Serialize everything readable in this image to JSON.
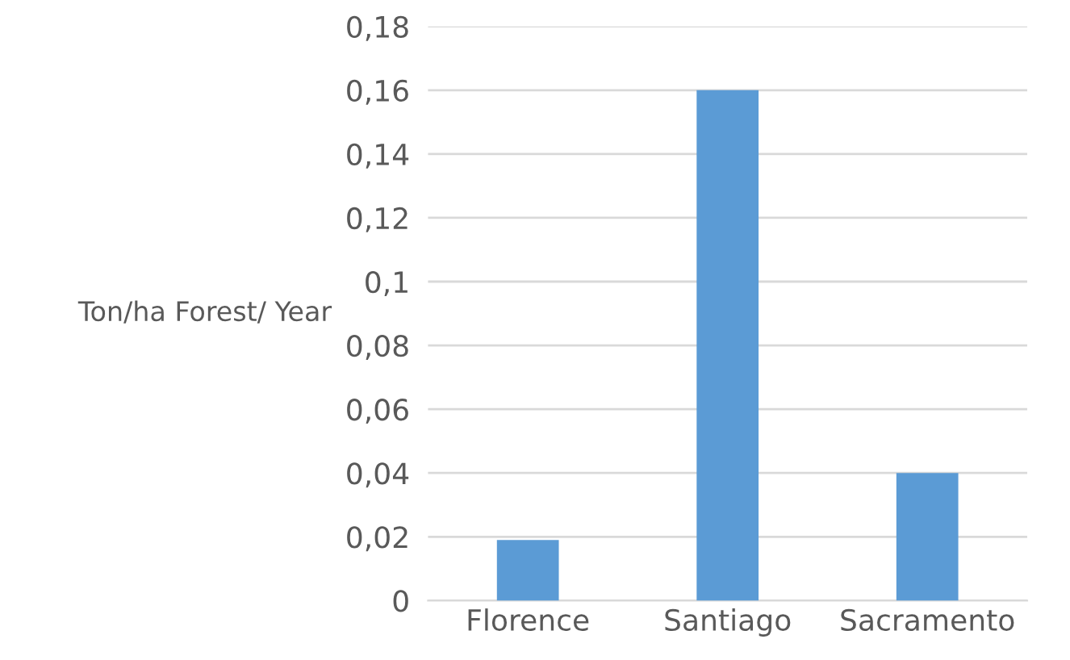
{
  "chart_data": {
    "type": "bar",
    "ylabel": "Ton/ha Forest/ Year",
    "categories": [
      "Florence",
      "Santiago",
      "Sacramento"
    ],
    "values": [
      0.019,
      0.16,
      0.04
    ],
    "color": "#5b9bd5",
    "ylim": [
      0,
      0.18
    ],
    "yticks": [
      0,
      {
        "value": 0.02,
        "label": "0,02"
      },
      {
        "value": 0.04,
        "label": "0,04"
      },
      {
        "value": 0.06,
        "label": "0,06"
      },
      {
        "value": 0.08,
        "label": "0,08"
      },
      {
        "value": 0.1,
        "label": "0,1"
      },
      {
        "value": 0.12,
        "label": "0,12"
      },
      {
        "value": 0.14,
        "label": "0,14"
      },
      {
        "value": 0.16,
        "label": "0,16"
      },
      {
        "value": 0.18,
        "label": "0,18"
      }
    ],
    "grid": "y",
    "legend": false
  }
}
